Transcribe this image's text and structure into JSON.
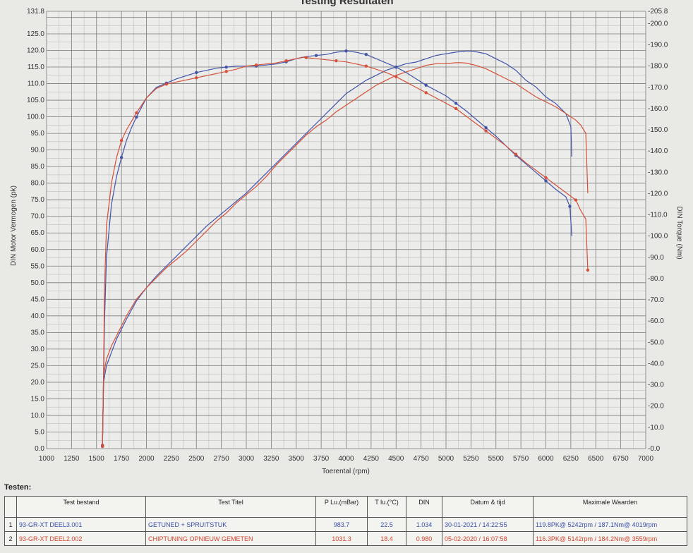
{
  "chart_data": {
    "type": "line",
    "title": "Testing Resultaten",
    "xlabel": "Toerental (rpm)",
    "ylabel_left": "DIN Motor Vermogen (pk)",
    "ylabel_right": "DIN Torque (Nm)",
    "xlim": [
      1000,
      7000
    ],
    "ylim_left": [
      0,
      131.8
    ],
    "ylim_right": [
      0,
      205.8
    ],
    "x_ticks": [
      "1000",
      "1250",
      "1500",
      "1750",
      "2000",
      "2250",
      "2500",
      "2750",
      "3000",
      "3250",
      "3500",
      "3750",
      "4000",
      "4250",
      "4500",
      "4750",
      "5000",
      "5250",
      "5500",
      "5750",
      "6000",
      "6250",
      "6500",
      "6750",
      "7000"
    ],
    "y_left_ticks": [
      "0.0",
      "5.0",
      "10.0",
      "15.0",
      "20.0",
      "25.0",
      "30.0",
      "35.0",
      "40.0",
      "45.0",
      "50.0",
      "55.0",
      "60.0",
      "65.0",
      "70.0",
      "75.0",
      "80.0",
      "85.0",
      "90.0",
      "95.0",
      "100.0",
      "105.0",
      "110.0",
      "115.0",
      "120.0",
      "125.0"
    ],
    "y_left_top_label": "131.8",
    "y_right_ticks": [
      "0.0",
      "10.0",
      "20.0",
      "30.0",
      "40.0",
      "50.0",
      "60.0",
      "70.0",
      "80.0",
      "90.0",
      "100.0",
      "110.0",
      "120.0",
      "130.0",
      "140.0",
      "150.0",
      "160.0",
      "170.0",
      "180.0",
      "190.0",
      "200.0"
    ],
    "y_right_top_label": "205.8",
    "grid": true,
    "series": [
      {
        "name": "93-GR-XT DEEL3.001",
        "axis": "left",
        "quantity": "power",
        "color": "#4254a8",
        "x": [
          1560,
          1570,
          1600,
          1650,
          1700,
          1800,
          1900,
          2000,
          2100,
          2200,
          2300,
          2400,
          2500,
          2600,
          2700,
          2800,
          2900,
          3000,
          3100,
          3200,
          3300,
          3400,
          3500,
          3600,
          3700,
          3800,
          3900,
          4000,
          4100,
          4200,
          4300,
          4400,
          4500,
          4600,
          4700,
          4800,
          4900,
          5000,
          5100,
          5200,
          5250,
          5300,
          5400,
          5500,
          5600,
          5700,
          5800,
          5900,
          6000,
          6100,
          6200,
          6250,
          6260
        ],
        "values": [
          1,
          20,
          25,
          29,
          33,
          39,
          44.5,
          48.5,
          52,
          55,
          58,
          61,
          64,
          67,
          69.5,
          72,
          74.5,
          77,
          80,
          83,
          86,
          89,
          92,
          95,
          98,
          101,
          104,
          107,
          109,
          111,
          112.5,
          114,
          115,
          116,
          116.5,
          117.5,
          118.5,
          119,
          119.5,
          119.8,
          119.8,
          119.6,
          119,
          117.5,
          116,
          114,
          111,
          109,
          106,
          104,
          101,
          97,
          88
        ]
      },
      {
        "name": "93-GR-XT DEEL2.002",
        "axis": "left",
        "quantity": "power",
        "color": "#d4503a",
        "x": [
          1560,
          1570,
          1600,
          1650,
          1700,
          1800,
          1900,
          2000,
          2100,
          2200,
          2300,
          2400,
          2500,
          2600,
          2700,
          2800,
          2900,
          3000,
          3100,
          3200,
          3300,
          3400,
          3500,
          3600,
          3700,
          3800,
          3900,
          4000,
          4100,
          4200,
          4300,
          4400,
          4500,
          4600,
          4700,
          4800,
          4900,
          5000,
          5100,
          5142,
          5200,
          5300,
          5400,
          5500,
          5600,
          5700,
          5800,
          5900,
          6000,
          6100,
          6200,
          6300,
          6350,
          6400,
          6420
        ],
        "values": [
          1,
          22,
          27,
          31,
          34,
          40,
          45,
          48.5,
          51.5,
          54.5,
          57,
          59.5,
          62.5,
          65.5,
          68.5,
          71,
          74,
          76.5,
          79,
          82,
          85.5,
          88.5,
          91.5,
          94.5,
          97,
          99,
          101.5,
          103.5,
          105.5,
          107.5,
          109.5,
          111,
          112.5,
          113.5,
          114.5,
          115.5,
          116,
          116,
          116.3,
          116.3,
          116.2,
          115.5,
          114.5,
          113,
          111.5,
          110,
          108,
          106,
          104.5,
          103,
          101,
          99,
          97.5,
          95,
          77
        ]
      },
      {
        "name": "93-GR-XT DEEL3.001",
        "axis": "right",
        "quantity": "torque",
        "color": "#4254a8",
        "x": [
          1560,
          1570,
          1580,
          1600,
          1650,
          1700,
          1750,
          1800,
          1850,
          1900,
          2000,
          2100,
          2200,
          2300,
          2400,
          2500,
          2600,
          2700,
          2800,
          2900,
          3000,
          3100,
          3200,
          3300,
          3400,
          3500,
          3600,
          3700,
          3800,
          3900,
          4000,
          4019,
          4100,
          4200,
          4300,
          4400,
          4500,
          4600,
          4700,
          4800,
          4900,
          5000,
          5100,
          5200,
          5300,
          5400,
          5500,
          5600,
          5700,
          5800,
          5900,
          6000,
          6100,
          6200,
          6240,
          6260
        ],
        "values": [
          1,
          30,
          60,
          90,
          115,
          128,
          137,
          145,
          151,
          156,
          165,
          170,
          172,
          174,
          175.5,
          177,
          178,
          179,
          179.5,
          180,
          180,
          180,
          180.5,
          181,
          182,
          183.5,
          184.5,
          185,
          185.5,
          186.5,
          187.1,
          187.1,
          186.5,
          185.5,
          183.5,
          181.5,
          179.5,
          177,
          174,
          171,
          168.5,
          166,
          162.5,
          159,
          155,
          151,
          147,
          142.5,
          138,
          134,
          130,
          126,
          122,
          118.5,
          114,
          100
        ]
      },
      {
        "name": "93-GR-XT DEEL2.002",
        "axis": "right",
        "quantity": "torque",
        "color": "#d4503a",
        "x": [
          1560,
          1570,
          1580,
          1600,
          1650,
          1700,
          1750,
          1800,
          1850,
          1900,
          2000,
          2100,
          2200,
          2300,
          2400,
          2500,
          2600,
          2700,
          2800,
          2900,
          3000,
          3100,
          3200,
          3300,
          3400,
          3500,
          3559,
          3600,
          3700,
          3800,
          3900,
          4000,
          4100,
          4200,
          4300,
          4400,
          4500,
          4600,
          4700,
          4800,
          4900,
          5000,
          5100,
          5200,
          5300,
          5400,
          5500,
          5600,
          5700,
          5800,
          5900,
          6000,
          6100,
          6200,
          6300,
          6350,
          6400,
          6420
        ],
        "values": [
          1,
          35,
          75,
          105,
          125,
          137,
          145,
          150,
          154,
          158,
          165,
          169.5,
          171.5,
          172.5,
          173.5,
          174.5,
          175.5,
          176.5,
          177.5,
          178.5,
          180,
          180.5,
          181,
          181.5,
          182.5,
          183.5,
          184.2,
          184,
          183.5,
          183,
          182.5,
          182,
          181,
          180,
          178.5,
          177,
          175,
          172.5,
          170,
          167.5,
          165,
          162.5,
          160,
          156.5,
          153,
          149.5,
          146,
          142.5,
          138.5,
          134.5,
          131,
          127.5,
          124,
          120.5,
          117,
          112,
          108,
          84
        ]
      }
    ]
  },
  "tests": {
    "heading": "Testen:",
    "columns": [
      "Test bestand",
      "Test Titel",
      "P Lu.(mBar)",
      "T lu.(°C)",
      "DIN",
      "Datum & tijd",
      "Maximale Waarden"
    ],
    "rows": [
      {
        "idx": "1",
        "file": "93-GR-XT DEEL3.001",
        "title": "GETUNED + SPRUITSTUK",
        "p": "983.7",
        "t": "22.5",
        "din": "1.034",
        "date": "30-01-2021 / 14:22:55",
        "max": "119.8PK@ 5242rpm / 187.1Nm@ 4019rpm",
        "color": "#3a4fa8"
      },
      {
        "idx": "2",
        "file": "93-GR-XT DEEL2.002",
        "title": "CHIPTUNING OPNIEUW GEMETEN",
        "p": "1031.3",
        "t": "18.4",
        "din": "0.980",
        "date": "05-02-2020 / 16:07:58",
        "max": "116.3PK@ 5142rpm / 184.2Nm@ 3559rpm",
        "color": "#d2452f"
      }
    ]
  }
}
